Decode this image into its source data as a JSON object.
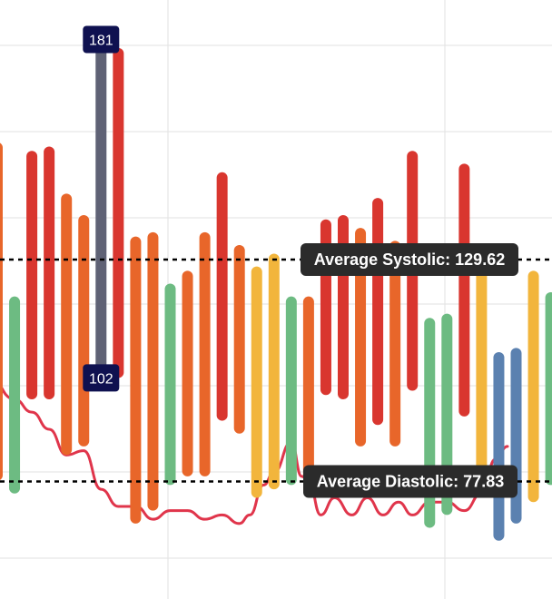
{
  "chart_data": {
    "type": "bar",
    "subtype": "floating-range",
    "title": "",
    "xlabel": "",
    "ylabel": "",
    "ylim": [
      60,
      195
    ],
    "grid": true,
    "colors": {
      "crisis": "#d9362f",
      "stage2": "#e8662a",
      "elevated": "#f2b53c",
      "normal": "#6dbb82",
      "low": "#5b81b0",
      "highlight": "#5f6275",
      "line": "#e0354b",
      "grid": "#e2e2e2"
    },
    "ranges": [
      {
        "low": 78,
        "high": 157,
        "category": "stage2"
      },
      {
        "low": 75,
        "high": 121,
        "category": "normal"
      },
      {
        "low": 97,
        "high": 155,
        "category": "crisis"
      },
      {
        "low": 97,
        "high": 156,
        "category": "crisis"
      },
      {
        "low": 84,
        "high": 145,
        "category": "stage2"
      },
      {
        "low": 86,
        "high": 140,
        "category": "stage2"
      },
      {
        "low": 102,
        "high": 181,
        "category": "highlight"
      },
      {
        "low": 102,
        "high": 179,
        "category": "crisis"
      },
      {
        "low": 68,
        "high": 135,
        "category": "stage2"
      },
      {
        "low": 71,
        "high": 136,
        "category": "stage2"
      },
      {
        "low": 77,
        "high": 124,
        "category": "normal"
      },
      {
        "low": 79,
        "high": 127,
        "category": "stage2"
      },
      {
        "low": 79,
        "high": 136,
        "category": "stage2"
      },
      {
        "low": 92,
        "high": 150,
        "category": "crisis"
      },
      {
        "low": 89,
        "high": 133,
        "category": "stage2"
      },
      {
        "low": 74,
        "high": 128,
        "category": "elevated"
      },
      {
        "low": 76,
        "high": 131,
        "category": "elevated"
      },
      {
        "low": 77,
        "high": 121,
        "category": "normal"
      },
      {
        "low": 78,
        "high": 121,
        "category": "stage2"
      },
      {
        "low": 98,
        "high": 139,
        "category": "crisis"
      },
      {
        "low": 97,
        "high": 140,
        "category": "crisis"
      },
      {
        "low": 86,
        "high": 137,
        "category": "stage2"
      },
      {
        "low": 91,
        "high": 144,
        "category": "crisis"
      },
      {
        "low": 86,
        "high": 134,
        "category": "stage2"
      },
      {
        "low": 99,
        "high": 155,
        "category": "crisis"
      },
      {
        "low": 67,
        "high": 116,
        "category": "normal"
      },
      {
        "low": 70,
        "high": 117,
        "category": "normal"
      },
      {
        "low": 93,
        "high": 152,
        "category": "crisis"
      },
      {
        "low": 79,
        "high": 130,
        "category": "elevated"
      },
      {
        "low": 64,
        "high": 108,
        "category": "low"
      },
      {
        "low": 68,
        "high": 109,
        "category": "low"
      },
      {
        "low": 73,
        "high": 127,
        "category": "elevated"
      },
      {
        "low": 77,
        "high": 122,
        "category": "normal"
      }
    ],
    "trend_line": [
      {
        "i": -0.7,
        "v": 104
      },
      {
        "i": 1,
        "v": 97
      },
      {
        "i": 2,
        "v": 94
      },
      {
        "i": 3,
        "v": 90
      },
      {
        "i": 4,
        "v": 84
      },
      {
        "i": 5,
        "v": 85
      },
      {
        "i": 6,
        "v": 76
      },
      {
        "i": 7,
        "v": 72
      },
      {
        "i": 8,
        "v": 72
      },
      {
        "i": 9,
        "v": 69
      },
      {
        "i": 10,
        "v": 71
      },
      {
        "i": 11,
        "v": 71
      },
      {
        "i": 12,
        "v": 69
      },
      {
        "i": 13,
        "v": 70
      },
      {
        "i": 14,
        "v": 68
      },
      {
        "i": 14.6,
        "v": 70
      },
      {
        "i": 15.4,
        "v": 77
      },
      {
        "i": 16,
        "v": 80
      },
      {
        "i": 17,
        "v": 87
      },
      {
        "i": 17.6,
        "v": 79
      },
      {
        "i": 18,
        "v": 78
      },
      {
        "i": 18.7,
        "v": 70
      },
      {
        "i": 19.5,
        "v": 74
      },
      {
        "i": 20.5,
        "v": 70
      },
      {
        "i": 21.4,
        "v": 74
      },
      {
        "i": 22.3,
        "v": 70
      },
      {
        "i": 23.2,
        "v": 73
      },
      {
        "i": 24,
        "v": 70
      },
      {
        "i": 25,
        "v": 73
      },
      {
        "i": 26,
        "v": 73
      },
      {
        "i": 27,
        "v": 71
      },
      {
        "i": 28,
        "v": 75
      },
      {
        "i": 28.8,
        "v": 83
      },
      {
        "i": 29.5,
        "v": 86
      }
    ],
    "reference_lines": [
      {
        "label": "Average Systolic: 129.62",
        "value": 129.62
      },
      {
        "label": "Average Diastolic: 77.83",
        "value": 77.83
      }
    ],
    "markers": {
      "max_label": "181",
      "min_label": "102",
      "bar_index": 6
    }
  }
}
